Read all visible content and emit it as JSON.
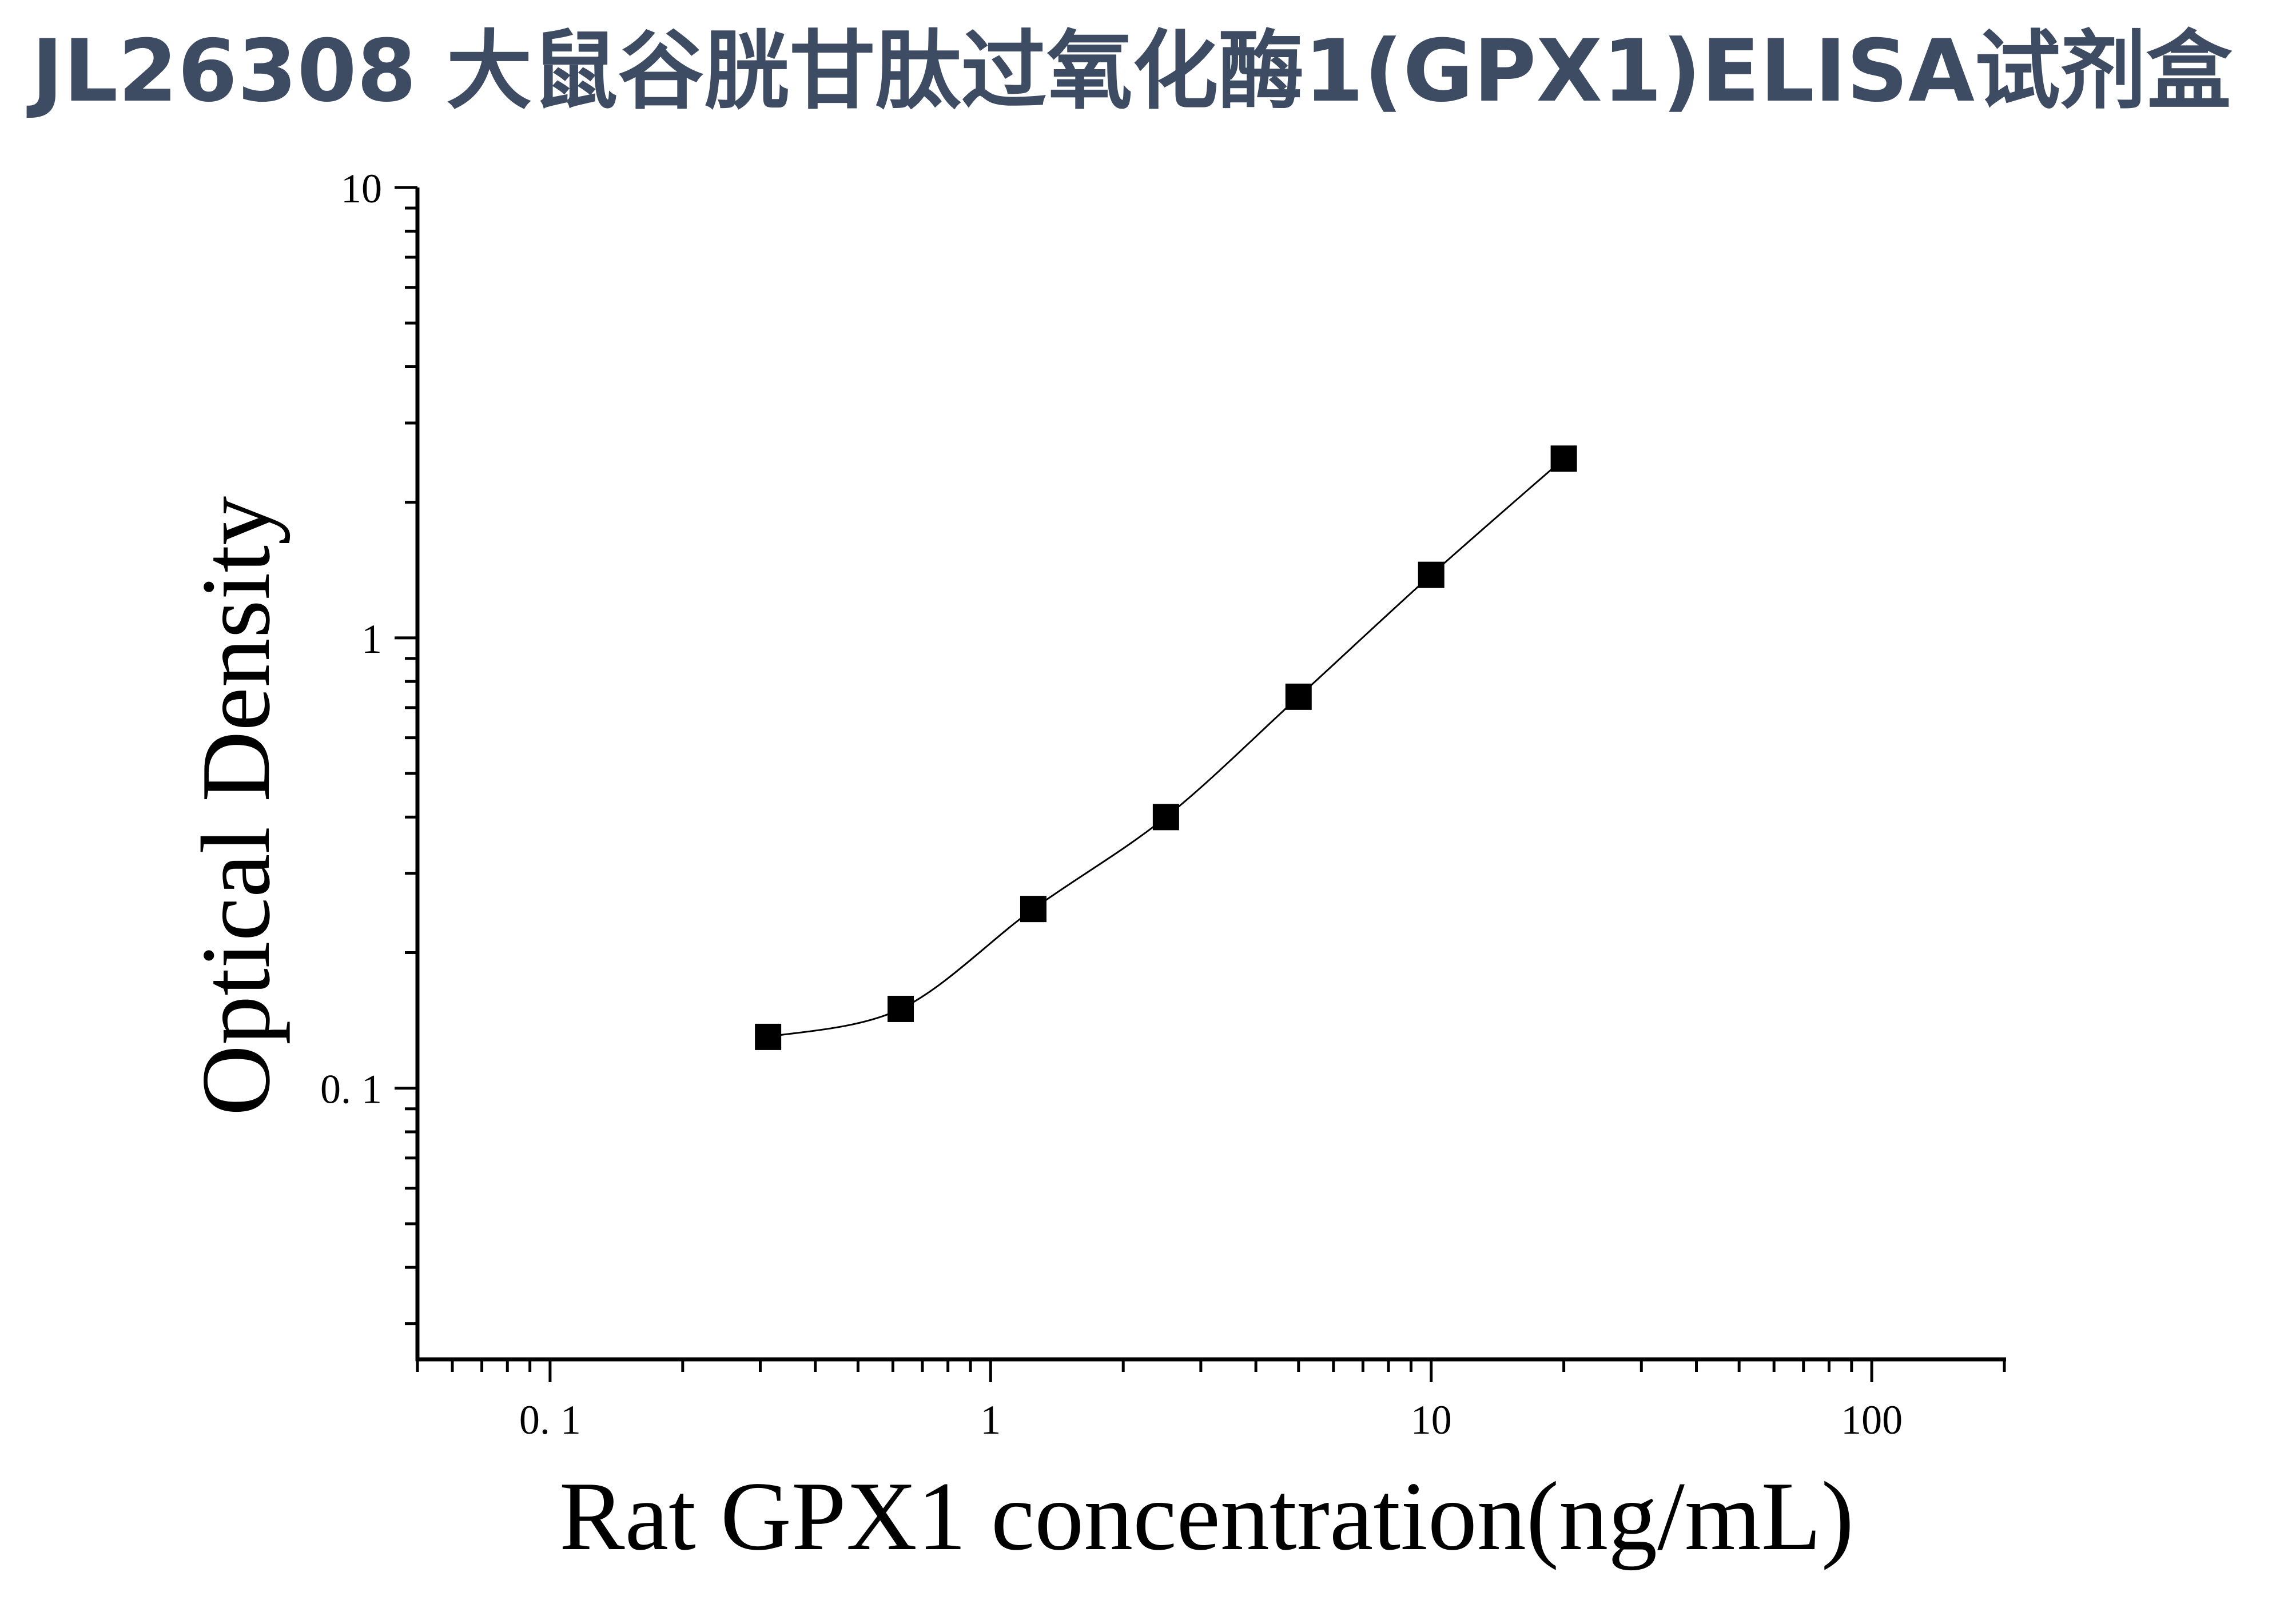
{
  "title": "JL26308 大鼠谷胱甘肽过氧化酶1(GPX1)ELISA试剂盒",
  "chart_data": {
    "type": "scatter",
    "title": "JL26308 大鼠谷胱甘肽过氧化酶1(GPX1)ELISA试剂盒",
    "xlabel": "Rat GPX1 concentration(ng/mL)",
    "ylabel": "Optical Density",
    "xscale": "log",
    "yscale": "log",
    "xlim": [
      0.05,
      200
    ],
    "ylim": [
      0.025,
      10
    ],
    "x_ticks": [
      0.1,
      1,
      10,
      100
    ],
    "x_tick_labels": [
      "0. 1",
      "1",
      "10",
      "100"
    ],
    "y_ticks": [
      0.1,
      1,
      10
    ],
    "y_tick_labels": [
      "0. 1",
      "1",
      "10"
    ],
    "grid": false,
    "legend": "none",
    "marker": "square",
    "fit_curve": true,
    "colors": {
      "title": "#3d4b63",
      "marks": "#000000"
    },
    "series": [
      {
        "x": [
          0.3125,
          0.625,
          1.25,
          2.5,
          5,
          10,
          20
        ],
        "y": [
          0.13,
          0.15,
          0.25,
          0.4,
          0.74,
          1.38,
          2.5
        ]
      }
    ]
  }
}
